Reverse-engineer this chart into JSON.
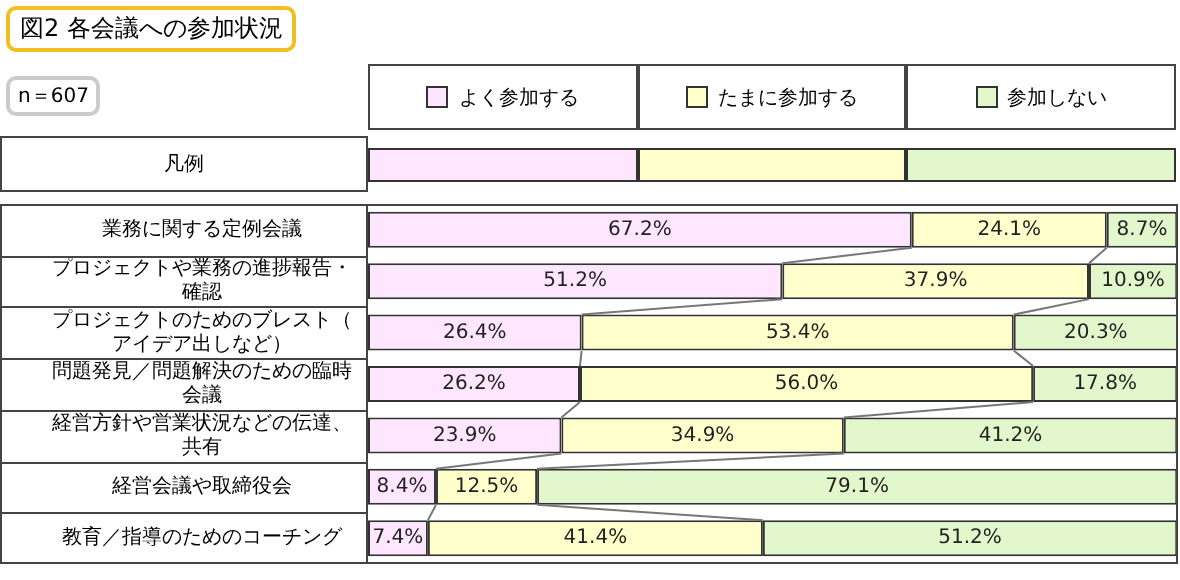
{
  "chart_data": {
    "type": "bar",
    "orientation": "horizontal",
    "stacked": true,
    "title": "図2 各会議への参加状況",
    "annotations": [
      "n＝607"
    ],
    "legend": "top",
    "legend_title": "凡例",
    "categories": [
      "業務に関する定例会議",
      "プロジェクトや業務の進捗報告・確認",
      "プロジェクトのためのブレスト（アイデア出しなど）",
      "問題発見／問題解決のための臨時会議",
      "経営方針や営業状況などの伝達、共有",
      "経営会議や取締役会",
      "教育／指導のためのコーチング"
    ],
    "series": [
      {
        "name": "よく参加する",
        "color": "#ffe6ff",
        "values": [
          67.2,
          51.2,
          26.4,
          26.2,
          23.9,
          8.4,
          7.4
        ],
        "value_labels": [
          "67.2%",
          "51.2%",
          "26.4%",
          "26.2%",
          "23.9%",
          "8.4%",
          "7.4%"
        ]
      },
      {
        "name": "たまに参加する",
        "color": "#ffffcc",
        "values": [
          24.1,
          37.9,
          53.4,
          56.0,
          34.9,
          12.5,
          41.4
        ],
        "value_labels": [
          "24.1%",
          "37.9%",
          "53.4%",
          "56.0%",
          "34.9%",
          "12.5%",
          "41.4%"
        ]
      },
      {
        "name": "参加しない",
        "color": "#e2f8cc",
        "values": [
          8.7,
          10.9,
          20.3,
          17.8,
          41.2,
          79.1,
          51.2
        ],
        "value_labels": [
          "8.7%",
          "10.9%",
          "20.3%",
          "17.8%",
          "41.2%",
          "79.1%",
          "51.2%"
        ]
      }
    ]
  }
}
